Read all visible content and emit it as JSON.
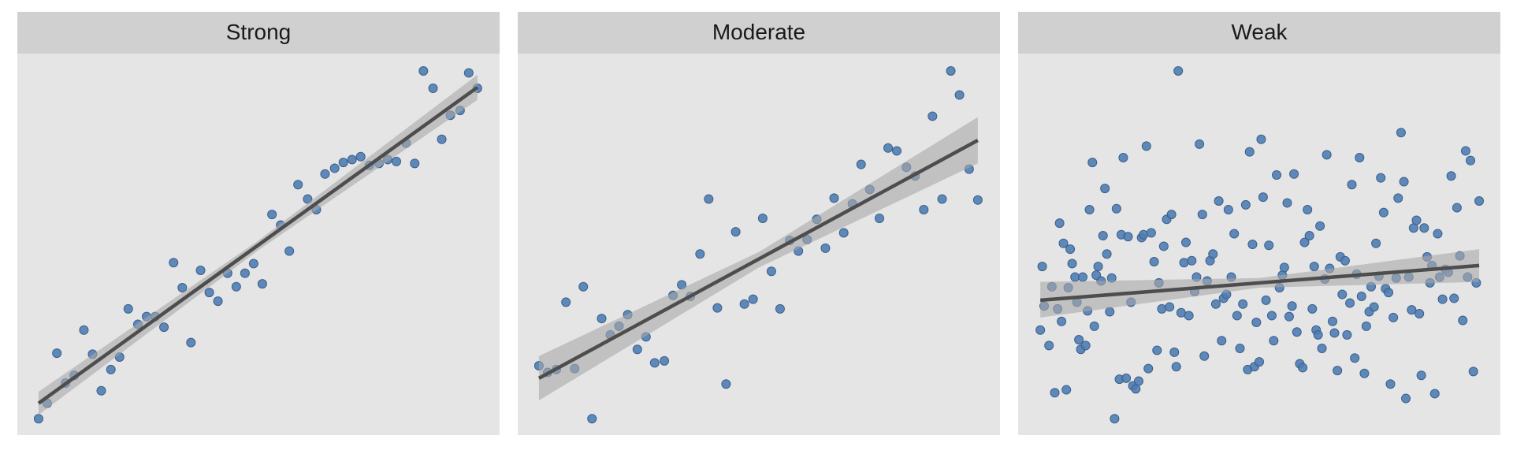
{
  "chart_data": [
    {
      "type": "scatter",
      "title": "Strong",
      "color": "#4f7db3",
      "xlim": [
        0,
        500
      ],
      "ylim": [
        0,
        396
      ],
      "x": [
        22,
        31,
        41,
        50,
        59,
        69,
        78,
        87,
        97,
        106,
        115,
        125,
        134,
        143,
        152,
        162,
        171,
        180,
        190,
        199,
        208,
        218,
        227,
        236,
        245,
        254,
        264,
        273,
        282,
        291,
        301,
        310,
        319,
        329,
        338,
        347,
        356,
        365,
        375,
        384,
        393,
        403,
        412,
        421,
        431,
        440,
        449,
        459,
        468,
        477
      ],
      "y": [
        17,
        33,
        85,
        54,
        62,
        109,
        84,
        46,
        68,
        81,
        131,
        115,
        123,
        123,
        112,
        179,
        153,
        96,
        171,
        148,
        139,
        168,
        154,
        168,
        178,
        157,
        229,
        218,
        191,
        260,
        245,
        234,
        271,
        277,
        283,
        286,
        289,
        280,
        282,
        286,
        284,
        303,
        282,
        378,
        360,
        307,
        332,
        337,
        376,
        360
      ],
      "fit": {
        "x": [
          22,
          477
        ],
        "y": [
          33,
          361
        ]
      },
      "band": {
        "x": [
          22,
          250,
          477
        ],
        "lower": [
          21,
          192,
          348
        ],
        "upper": [
          45,
          202,
          374
        ]
      }
    },
    {
      "type": "scatter",
      "title": "Moderate",
      "color": "#4f7db3",
      "xlim": [
        0,
        500
      ],
      "ylim": [
        0,
        396
      ],
      "x": [
        22,
        31,
        40,
        50,
        59,
        68,
        77,
        87,
        96,
        105,
        114,
        124,
        133,
        142,
        152,
        161,
        170,
        179,
        189,
        198,
        207,
        216,
        226,
        235,
        244,
        254,
        263,
        272,
        282,
        291,
        300,
        310,
        319,
        328,
        338,
        347,
        356,
        365,
        375,
        384,
        393,
        403,
        412,
        421,
        430,
        440,
        449,
        458,
        468,
        477
      ],
      "y": [
        72,
        65,
        68,
        138,
        69,
        154,
        17,
        121,
        104,
        113,
        125,
        89,
        102,
        75,
        77,
        145,
        156,
        144,
        188,
        245,
        132,
        53,
        211,
        136,
        141,
        225,
        170,
        131,
        202,
        191,
        203,
        224,
        194,
        246,
        210,
        240,
        281,
        255,
        225,
        298,
        295,
        278,
        269,
        234,
        331,
        245,
        378,
        353,
        276,
        244
      ],
      "fit": {
        "x": [
          22,
          477
        ],
        "y": [
          59,
          306
        ]
      },
      "band": {
        "x": [
          22,
          250,
          477
        ],
        "lower": [
          36,
          174,
          282
        ],
        "upper": [
          82,
          190,
          330
        ]
      }
    },
    {
      "type": "scatter",
      "title": "Weak",
      "color": "#4f7db3",
      "xlim": [
        0,
        500
      ],
      "ylim": [
        0,
        396
      ],
      "x": [
        25,
        27,
        23,
        32,
        35,
        38,
        41,
        43,
        45,
        47,
        50,
        52,
        54,
        56,
        59,
        61,
        63,
        65,
        67,
        70,
        72,
        74,
        77,
        79,
        81,
        83,
        86,
        88,
        90,
        92,
        95,
        97,
        100,
        102,
        105,
        107,
        109,
        112,
        114,
        117,
        119,
        122,
        125,
        128,
        130,
        133,
        135,
        138,
        141,
        144,
        146,
        149,
        151,
        154,
        157,
        159,
        162,
        164,
        166,
        169,
        172,
        174,
        177,
        180,
        183,
        185,
        188,
        191,
        193,
        196,
        199,
        202,
        205,
        208,
        211,
        213,
        216,
        218,
        221,
        224,
        227,
        230,
        233,
        236,
        238,
        240,
        243,
        245,
        247,
        250,
        252,
        254,
        257,
        260,
        263,
        265,
        268,
        271,
        274,
        276,
        279,
        281,
        284,
        286,
        289,
        292,
        295,
        297,
        300,
        302,
        305,
        307,
        309,
        311,
        313,
        315,
        318,
        320,
        323,
        326,
        328,
        331,
        334,
        336,
        339,
        341,
        344,
        346,
        349,
        351,
        354,
        356,
        359,
        361,
        364,
        366,
        369,
        371,
        374,
        376,
        379,
        381,
        384,
        386,
        389,
        392,
        394,
        397,
        400,
        402,
        405,
        408,
        410,
        413,
        416,
        418,
        421,
        424,
        427,
        429,
        432,
        435,
        437,
        440,
        443,
        446,
        449,
        452,
        455,
        458,
        461,
        464,
        466,
        469,
        472,
        475,
        478
      ],
      "y": [
        175,
        134,
        109,
        93,
        154,
        44,
        131,
        220,
        118,
        199,
        47,
        153,
        193,
        178,
        164,
        138,
        99,
        89,
        164,
        93,
        129,
        234,
        283,
        113,
        166,
        175,
        160,
        207,
        256,
        188,
        128,
        163,
        17,
        235,
        58,
        208,
        288,
        59,
        206,
        138,
        51,
        48,
        56,
        205,
        208,
        300,
        69,
        210,
        180,
        88,
        158,
        131,
        196,
        224,
        133,
        229,
        86,
        71,
        378,
        127,
        179,
        200,
        124,
        181,
        149,
        164,
        302,
        229,
        82,
        160,
        181,
        188,
        136,
        243,
        98,
        142,
        146,
        234,
        164,
        209,
        124,
        90,
        136,
        239,
        68,
        294,
        198,
        71,
        117,
        76,
        307,
        247,
        140,
        197,
        124,
        98,
        270,
        153,
        166,
        174,
        241,
        123,
        134,
        271,
        107,
        74,
        70,
        200,
        234,
        207,
        131,
        175,
        109,
        104,
        217,
        90,
        162,
        291,
        173,
        118,
        106,
        67,
        185,
        146,
        181,
        104,
        137,
        260,
        80,
        167,
        288,
        144,
        64,
        113,
        128,
        154,
        133,
        199,
        165,
        267,
        231,
        152,
        148,
        53,
        122,
        163,
        246,
        314,
        263,
        38,
        164,
        130,
        215,
        223,
        126,
        62,
        215,
        185,
        158,
        176,
        43,
        209,
        164,
        141,
        172,
        169,
        269,
        142,
        236,
        186,
        119,
        295,
        164,
        285,
        66,
        158,
        243
      ],
      "fit": {
        "x": [
          23,
          478
        ],
        "y": [
          140,
          176
        ]
      },
      "band": {
        "x": [
          23,
          250,
          478
        ],
        "lower": [
          122,
          153,
          159
        ],
        "upper": [
          159,
          163,
          193
        ]
      }
    }
  ]
}
